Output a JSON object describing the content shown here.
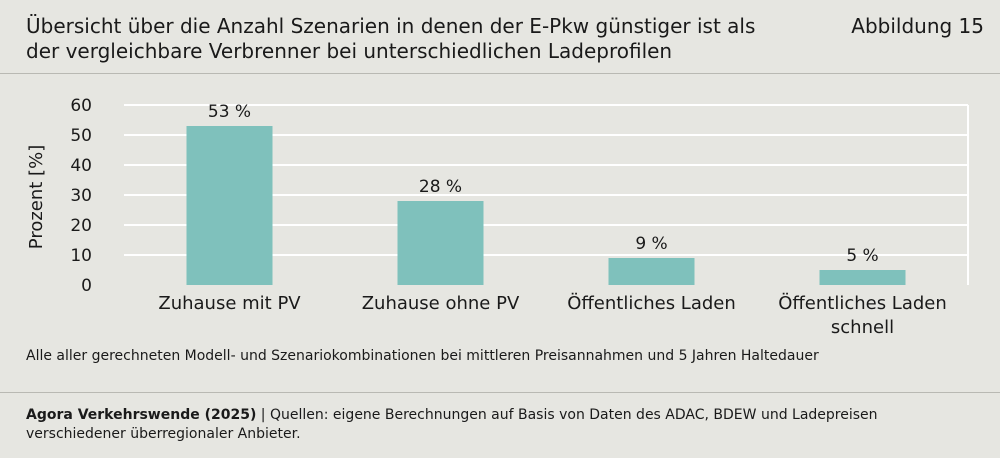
{
  "header": {
    "title": "Übersicht über die Anzahl Szenarien in denen der E-Pkw günstiger ist als der vergleichbare Verbrenner bei unterschiedlichen Ladeprofilen",
    "figure_label": "Abbildung 15"
  },
  "chart_data": {
    "type": "bar",
    "categories": [
      "Zuhause mit PV",
      "Zuhause ohne PV",
      "Öffentliches Laden",
      "Öffentliches Laden schnell"
    ],
    "values": [
      53,
      28,
      9,
      5
    ],
    "data_labels": [
      "53 %",
      "28 %",
      "9 %",
      "5 %"
    ],
    "title": "",
    "xlabel": "",
    "ylabel": "Prozent [%]",
    "ylim": [
      0,
      60
    ],
    "yticks": [
      0,
      10,
      20,
      30,
      40,
      50,
      60
    ],
    "grid": true,
    "bar_color": "#7fc1bc",
    "grid_color": "#ffffff"
  },
  "note": "Alle aller gerechneten Modell- und Szenariokombinationen bei mittleren Preisannahmen und 5 Jahren Haltedauer",
  "footer": {
    "org": "Agora Verkehrswende (2025)",
    "separator": " | ",
    "sources": "Quellen: eigene Berechnungen auf Basis von Daten des ADAC, BDEW und Ladepreisen verschiedener überregionaler Anbieter."
  }
}
